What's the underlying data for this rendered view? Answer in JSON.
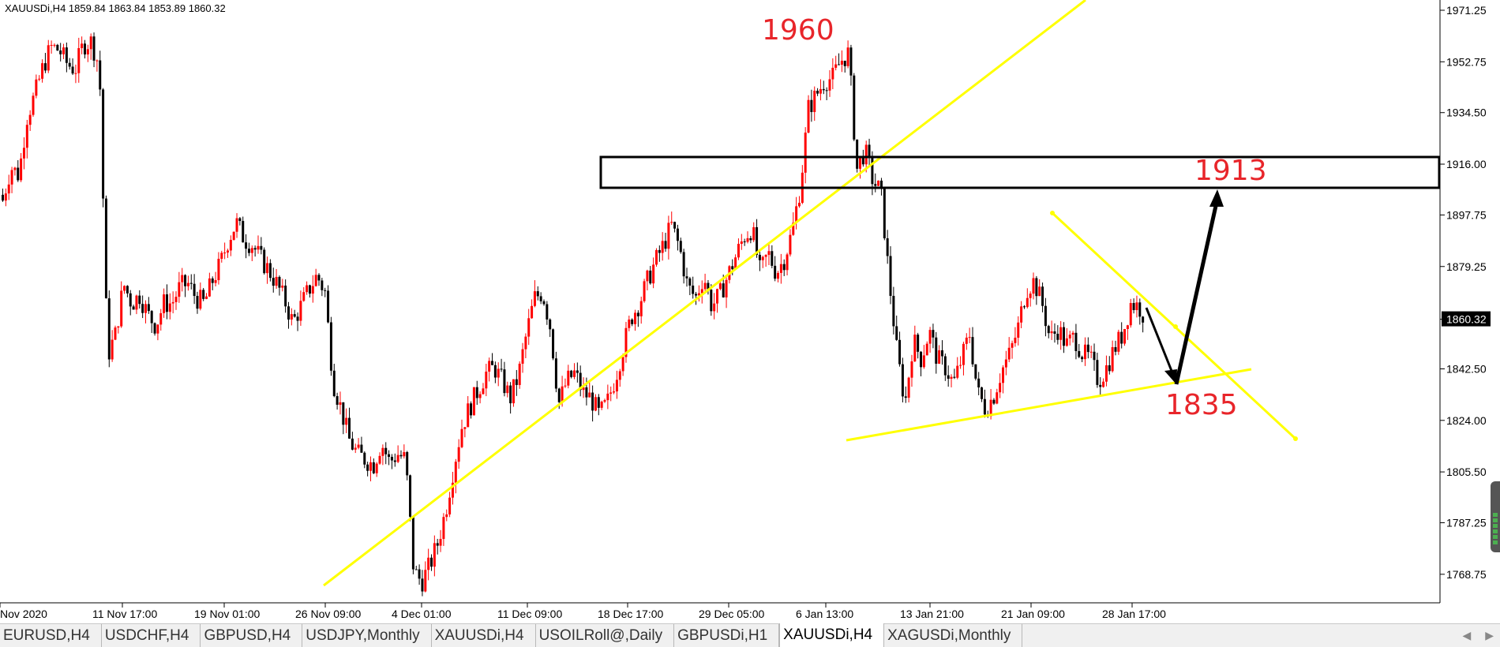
{
  "symbol_header": "XAUUSDi,H4  1859.84 1863.84 1853.89 1860.32",
  "current_price": "1860.32",
  "colors": {
    "bull": "#ff0000",
    "bear": "#000000",
    "trendline": "#ffff00",
    "annotation_text": "#e8252a",
    "zone_border": "#000000",
    "arrow": "#000000"
  },
  "chart_data": {
    "type": "candlestick",
    "symbol": "XAUUSDi",
    "timeframe": "H4",
    "ohlc_last": {
      "open": 1859.84,
      "high": 1863.84,
      "low": 1853.89,
      "close": 1860.32
    },
    "ylim": [
      1758,
      1975
    ],
    "price_ticks": [
      "1971.25",
      "1952.75",
      "1934.50",
      "1916.00",
      "1897.75",
      "1879.25",
      "1860.32",
      "1842.50",
      "1824.00",
      "1805.50",
      "1787.25",
      "1768.75"
    ],
    "time_ticks": [
      "Nov 2020",
      "11 Nov 17:00",
      "19 Nov 01:00",
      "26 Nov 09:00",
      "4 Dec 01:00",
      "11 Dec 09:00",
      "18 Dec 17:00",
      "29 Dec 05:00",
      "6 Jan 13:00",
      "13 Jan 21:00",
      "21 Jan 09:00",
      "28 Jan 17:00"
    ],
    "close_path": [
      [
        1905,
        1903
      ],
      [
        1915,
        1912
      ],
      [
        1933,
        1941
      ],
      [
        1951,
        1958
      ],
      [
        1957,
        1952
      ],
      [
        1950,
        1959
      ],
      [
        1960,
        1951
      ],
      [
        1847,
        1855
      ],
      [
        1873,
        1866
      ],
      [
        1869,
        1862
      ],
      [
        1858,
        1866
      ],
      [
        1866,
        1872
      ],
      [
        1873,
        1868
      ],
      [
        1866,
        1874
      ],
      [
        1880,
        1889
      ],
      [
        1895,
        1889
      ],
      [
        1887,
        1882
      ],
      [
        1878,
        1873
      ],
      [
        1867,
        1859
      ],
      [
        1865,
        1871
      ],
      [
        1876,
        1870
      ],
      [
        1838,
        1828
      ],
      [
        1817,
        1812
      ],
      [
        1810,
        1808
      ],
      [
        1816,
        1809
      ],
      [
        1812,
        1810
      ],
      [
        1770,
        1766
      ],
      [
        1772,
        1780
      ],
      [
        1792,
        1808
      ],
      [
        1822,
        1829
      ],
      [
        1835,
        1841
      ],
      [
        1843,
        1838
      ],
      [
        1832,
        1840
      ],
      [
        1855,
        1868
      ],
      [
        1870,
        1857
      ],
      [
        1830,
        1838
      ],
      [
        1841,
        1834
      ],
      [
        1832,
        1826
      ],
      [
        1830,
        1839
      ],
      [
        1850,
        1861
      ],
      [
        1866,
        1874
      ],
      [
        1881,
        1887
      ],
      [
        1894,
        1886
      ],
      [
        1872,
        1868
      ],
      [
        1876,
        1865
      ],
      [
        1869,
        1876
      ],
      [
        1883,
        1890
      ],
      [
        1893,
        1877
      ],
      [
        1884,
        1877
      ],
      [
        1882,
        1892
      ],
      [
        1908,
        1936
      ],
      [
        1941,
        1946
      ],
      [
        1947,
        1953
      ],
      [
        1956,
        1914
      ],
      [
        1921,
        1910
      ],
      [
        1906,
        1875
      ],
      [
        1848,
        1830
      ],
      [
        1853,
        1846
      ],
      [
        1856,
        1846
      ],
      [
        1843,
        1837
      ],
      [
        1846,
        1855
      ],
      [
        1834,
        1828
      ],
      [
        1833,
        1842
      ],
      [
        1848,
        1857
      ],
      [
        1871,
        1874
      ],
      [
        1866,
        1853
      ],
      [
        1857,
        1851
      ],
      [
        1854,
        1848
      ],
      [
        1846,
        1838
      ],
      [
        1843,
        1850
      ],
      [
        1855,
        1866
      ],
      [
        1865,
        1860
      ]
    ],
    "annotations": [
      {
        "label": "1960"
      },
      {
        "label": "1913"
      },
      {
        "label": "1835"
      }
    ],
    "resistance_zone": [
      1905,
      1916
    ]
  },
  "tabs": [
    {
      "label": "EURUSD,H4"
    },
    {
      "label": "USDCHF,H4"
    },
    {
      "label": "GBPUSD,H4"
    },
    {
      "label": "USDJPY,Monthly"
    },
    {
      "label": "XAUUSDi,H4"
    },
    {
      "label": "USOILRoll@,Daily"
    },
    {
      "label": "GBPUSDi,H1"
    },
    {
      "label": "XAUUSDi,H4",
      "active": true
    },
    {
      "label": "XAGUSDi,Monthly"
    }
  ],
  "tab_nav": {
    "prev": "◀",
    "next": "▶"
  }
}
